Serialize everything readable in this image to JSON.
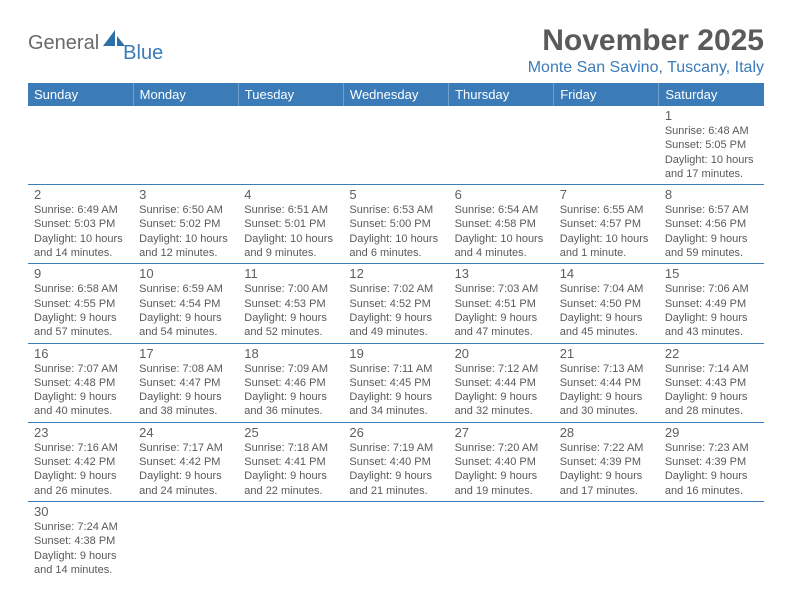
{
  "logo": {
    "text1": "General",
    "text2": "Blue"
  },
  "title": "November 2025",
  "location": "Monte San Savino, Tuscany, Italy",
  "colors": {
    "header_bg": "#3a7bb8",
    "header_text": "#ffffff",
    "rule": "#3a7bb8",
    "body_text": "#5a5a5a"
  },
  "weekdays": [
    "Sunday",
    "Monday",
    "Tuesday",
    "Wednesday",
    "Thursday",
    "Friday",
    "Saturday"
  ],
  "layout": {
    "cols": 7,
    "rows": 6,
    "first_weekday_index": 6,
    "days_in_month": 30
  },
  "days": [
    {
      "n": 1,
      "sunrise": "6:48 AM",
      "sunset": "5:05 PM",
      "daylight": "10 hours and 17 minutes."
    },
    {
      "n": 2,
      "sunrise": "6:49 AM",
      "sunset": "5:03 PM",
      "daylight": "10 hours and 14 minutes."
    },
    {
      "n": 3,
      "sunrise": "6:50 AM",
      "sunset": "5:02 PM",
      "daylight": "10 hours and 12 minutes."
    },
    {
      "n": 4,
      "sunrise": "6:51 AM",
      "sunset": "5:01 PM",
      "daylight": "10 hours and 9 minutes."
    },
    {
      "n": 5,
      "sunrise": "6:53 AM",
      "sunset": "5:00 PM",
      "daylight": "10 hours and 6 minutes."
    },
    {
      "n": 6,
      "sunrise": "6:54 AM",
      "sunset": "4:58 PM",
      "daylight": "10 hours and 4 minutes."
    },
    {
      "n": 7,
      "sunrise": "6:55 AM",
      "sunset": "4:57 PM",
      "daylight": "10 hours and 1 minute."
    },
    {
      "n": 8,
      "sunrise": "6:57 AM",
      "sunset": "4:56 PM",
      "daylight": "9 hours and 59 minutes."
    },
    {
      "n": 9,
      "sunrise": "6:58 AM",
      "sunset": "4:55 PM",
      "daylight": "9 hours and 57 minutes."
    },
    {
      "n": 10,
      "sunrise": "6:59 AM",
      "sunset": "4:54 PM",
      "daylight": "9 hours and 54 minutes."
    },
    {
      "n": 11,
      "sunrise": "7:00 AM",
      "sunset": "4:53 PM",
      "daylight": "9 hours and 52 minutes."
    },
    {
      "n": 12,
      "sunrise": "7:02 AM",
      "sunset": "4:52 PM",
      "daylight": "9 hours and 49 minutes."
    },
    {
      "n": 13,
      "sunrise": "7:03 AM",
      "sunset": "4:51 PM",
      "daylight": "9 hours and 47 minutes."
    },
    {
      "n": 14,
      "sunrise": "7:04 AM",
      "sunset": "4:50 PM",
      "daylight": "9 hours and 45 minutes."
    },
    {
      "n": 15,
      "sunrise": "7:06 AM",
      "sunset": "4:49 PM",
      "daylight": "9 hours and 43 minutes."
    },
    {
      "n": 16,
      "sunrise": "7:07 AM",
      "sunset": "4:48 PM",
      "daylight": "9 hours and 40 minutes."
    },
    {
      "n": 17,
      "sunrise": "7:08 AM",
      "sunset": "4:47 PM",
      "daylight": "9 hours and 38 minutes."
    },
    {
      "n": 18,
      "sunrise": "7:09 AM",
      "sunset": "4:46 PM",
      "daylight": "9 hours and 36 minutes."
    },
    {
      "n": 19,
      "sunrise": "7:11 AM",
      "sunset": "4:45 PM",
      "daylight": "9 hours and 34 minutes."
    },
    {
      "n": 20,
      "sunrise": "7:12 AM",
      "sunset": "4:44 PM",
      "daylight": "9 hours and 32 minutes."
    },
    {
      "n": 21,
      "sunrise": "7:13 AM",
      "sunset": "4:44 PM",
      "daylight": "9 hours and 30 minutes."
    },
    {
      "n": 22,
      "sunrise": "7:14 AM",
      "sunset": "4:43 PM",
      "daylight": "9 hours and 28 minutes."
    },
    {
      "n": 23,
      "sunrise": "7:16 AM",
      "sunset": "4:42 PM",
      "daylight": "9 hours and 26 minutes."
    },
    {
      "n": 24,
      "sunrise": "7:17 AM",
      "sunset": "4:42 PM",
      "daylight": "9 hours and 24 minutes."
    },
    {
      "n": 25,
      "sunrise": "7:18 AM",
      "sunset": "4:41 PM",
      "daylight": "9 hours and 22 minutes."
    },
    {
      "n": 26,
      "sunrise": "7:19 AM",
      "sunset": "4:40 PM",
      "daylight": "9 hours and 21 minutes."
    },
    {
      "n": 27,
      "sunrise": "7:20 AM",
      "sunset": "4:40 PM",
      "daylight": "9 hours and 19 minutes."
    },
    {
      "n": 28,
      "sunrise": "7:22 AM",
      "sunset": "4:39 PM",
      "daylight": "9 hours and 17 minutes."
    },
    {
      "n": 29,
      "sunrise": "7:23 AM",
      "sunset": "4:39 PM",
      "daylight": "9 hours and 16 minutes."
    },
    {
      "n": 30,
      "sunrise": "7:24 AM",
      "sunset": "4:38 PM",
      "daylight": "9 hours and 14 minutes."
    }
  ],
  "labels": {
    "sunrise": "Sunrise:",
    "sunset": "Sunset:",
    "daylight": "Daylight:"
  }
}
